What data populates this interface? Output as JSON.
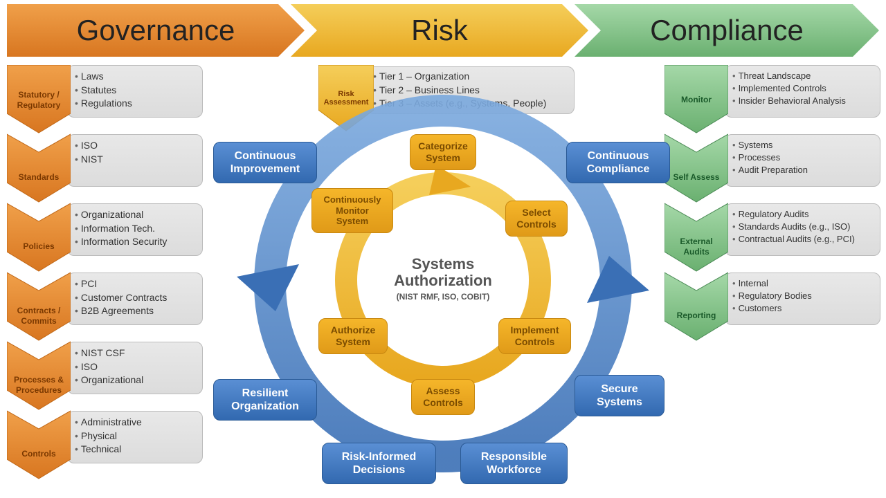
{
  "colors": {
    "orange_dark": "#d87620",
    "orange_light": "#f0a04a",
    "yellow_dark": "#e8a820",
    "yellow_light": "#f5ce5a",
    "green_dark": "#6ab070",
    "green_light": "#a5d8a8",
    "blue_dark": "#3269b0",
    "blue_light": "#5a8fd4",
    "gray_box": "#e2e2e2"
  },
  "header": {
    "governance": "Governance",
    "risk": "Risk",
    "compliance": "Compliance"
  },
  "governance_items": [
    {
      "label": "Statutory / Regulatory",
      "bullets": [
        "Laws",
        "Statutes",
        "Regulations"
      ]
    },
    {
      "label": "Standards",
      "bullets": [
        "ISO",
        "NIST"
      ]
    },
    {
      "label": "Policies",
      "bullets": [
        "Organizational",
        "Information Tech.",
        "Information Security"
      ]
    },
    {
      "label": "Contracts / Commits",
      "bullets": [
        "PCI",
        "Customer Contracts",
        "B2B Agreements"
      ]
    },
    {
      "label": "Processes & Procedures",
      "bullets": [
        "NIST CSF",
        "ISO",
        "Organizational"
      ]
    },
    {
      "label": "Controls",
      "bullets": [
        "Administrative",
        "Physical",
        "Technical"
      ]
    }
  ],
  "compliance_items": [
    {
      "label": "Monitor",
      "bullets": [
        "Threat Landscape",
        "Implemented Controls",
        "Insider Behavioral Analysis"
      ]
    },
    {
      "label": "Self Assess",
      "bullets": [
        "Systems",
        "Processes",
        "Audit Preparation"
      ]
    },
    {
      "label": "External Audits",
      "bullets": [
        "Regulatory Audits",
        "Standards Audits (e.g., ISO)",
        "Contractual Audits (e.g., PCI)"
      ]
    },
    {
      "label": "Reporting",
      "bullets": [
        "Internal",
        "Regulatory Bodies",
        "Customers"
      ]
    }
  ],
  "risk_assessment": {
    "label": "Risk Assessment",
    "bullets": [
      "Tier 1 – Organization",
      "Tier 2 – Business Lines",
      "Tier 3 – Assets (e.g., Systems, People)"
    ]
  },
  "blue_ring": [
    "Continuous Improvement",
    "Continuous Compliance",
    "Secure Systems",
    "Responsible Workforce",
    "Risk-Informed Decisions",
    "Resilient Organization"
  ],
  "inner_cycle": [
    "Categorize System",
    "Select Controls",
    "Implement Controls",
    "Assess Controls",
    "Authorize System",
    "Continuously Monitor System"
  ],
  "center": {
    "title": "Systems Authorization",
    "subtitle": "(NIST RMF, ISO, COBIT)"
  }
}
